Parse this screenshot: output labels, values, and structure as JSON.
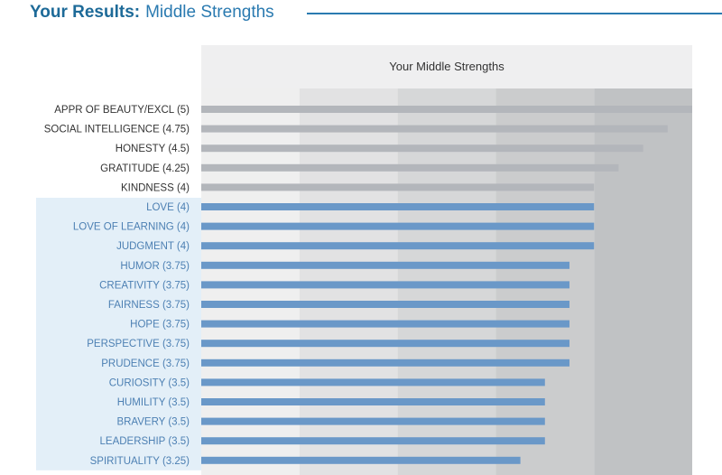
{
  "header": {
    "title_bold": "Your Results:",
    "title_light": "Middle Strengths"
  },
  "chart_data": {
    "type": "bar",
    "orientation": "horizontal",
    "title": "Your Middle Strengths",
    "xlim": [
      0,
      5
    ],
    "categories": [
      "APPR OF BEAUTY/EXCL (5)",
      "SOCIAL INTELLIGENCE (4.75)",
      "HONESTY (4.5)",
      "GRATITUDE (4.25)",
      "KINDNESS (4)",
      "LOVE (4)",
      "LOVE OF LEARNING (4)",
      "JUDGMENT (4)",
      "HUMOR (3.75)",
      "CREATIVITY (3.75)",
      "FAIRNESS (3.75)",
      "HOPE (3.75)",
      "PERSPECTIVE (3.75)",
      "PRUDENCE (3.75)",
      "CURIOSITY (3.5)",
      "HUMILITY (3.5)",
      "BRAVERY (3.5)",
      "LEADERSHIP (3.5)",
      "SPIRITUALITY (3.25)"
    ],
    "values": [
      5,
      4.75,
      4.5,
      4.25,
      4,
      4,
      4,
      4,
      3.75,
      3.75,
      3.75,
      3.75,
      3.75,
      3.75,
      3.5,
      3.5,
      3.5,
      3.5,
      3.25
    ],
    "highlighted": [
      false,
      false,
      false,
      false,
      false,
      true,
      true,
      true,
      true,
      true,
      true,
      true,
      true,
      true,
      true,
      true,
      true,
      true,
      true
    ],
    "colors": {
      "bar_gray": "#b3b6bb",
      "bar_blue": "#6a98c8",
      "label_gray": "#333333",
      "label_blue": "#4d80b3",
      "highlight_bg": "#e3eff8",
      "bands": [
        "#efefef",
        "#e2e2e3",
        "#d6d7d8",
        "#cbcccd",
        "#c0c2c4"
      ],
      "title_bg": "#efeff0"
    }
  }
}
